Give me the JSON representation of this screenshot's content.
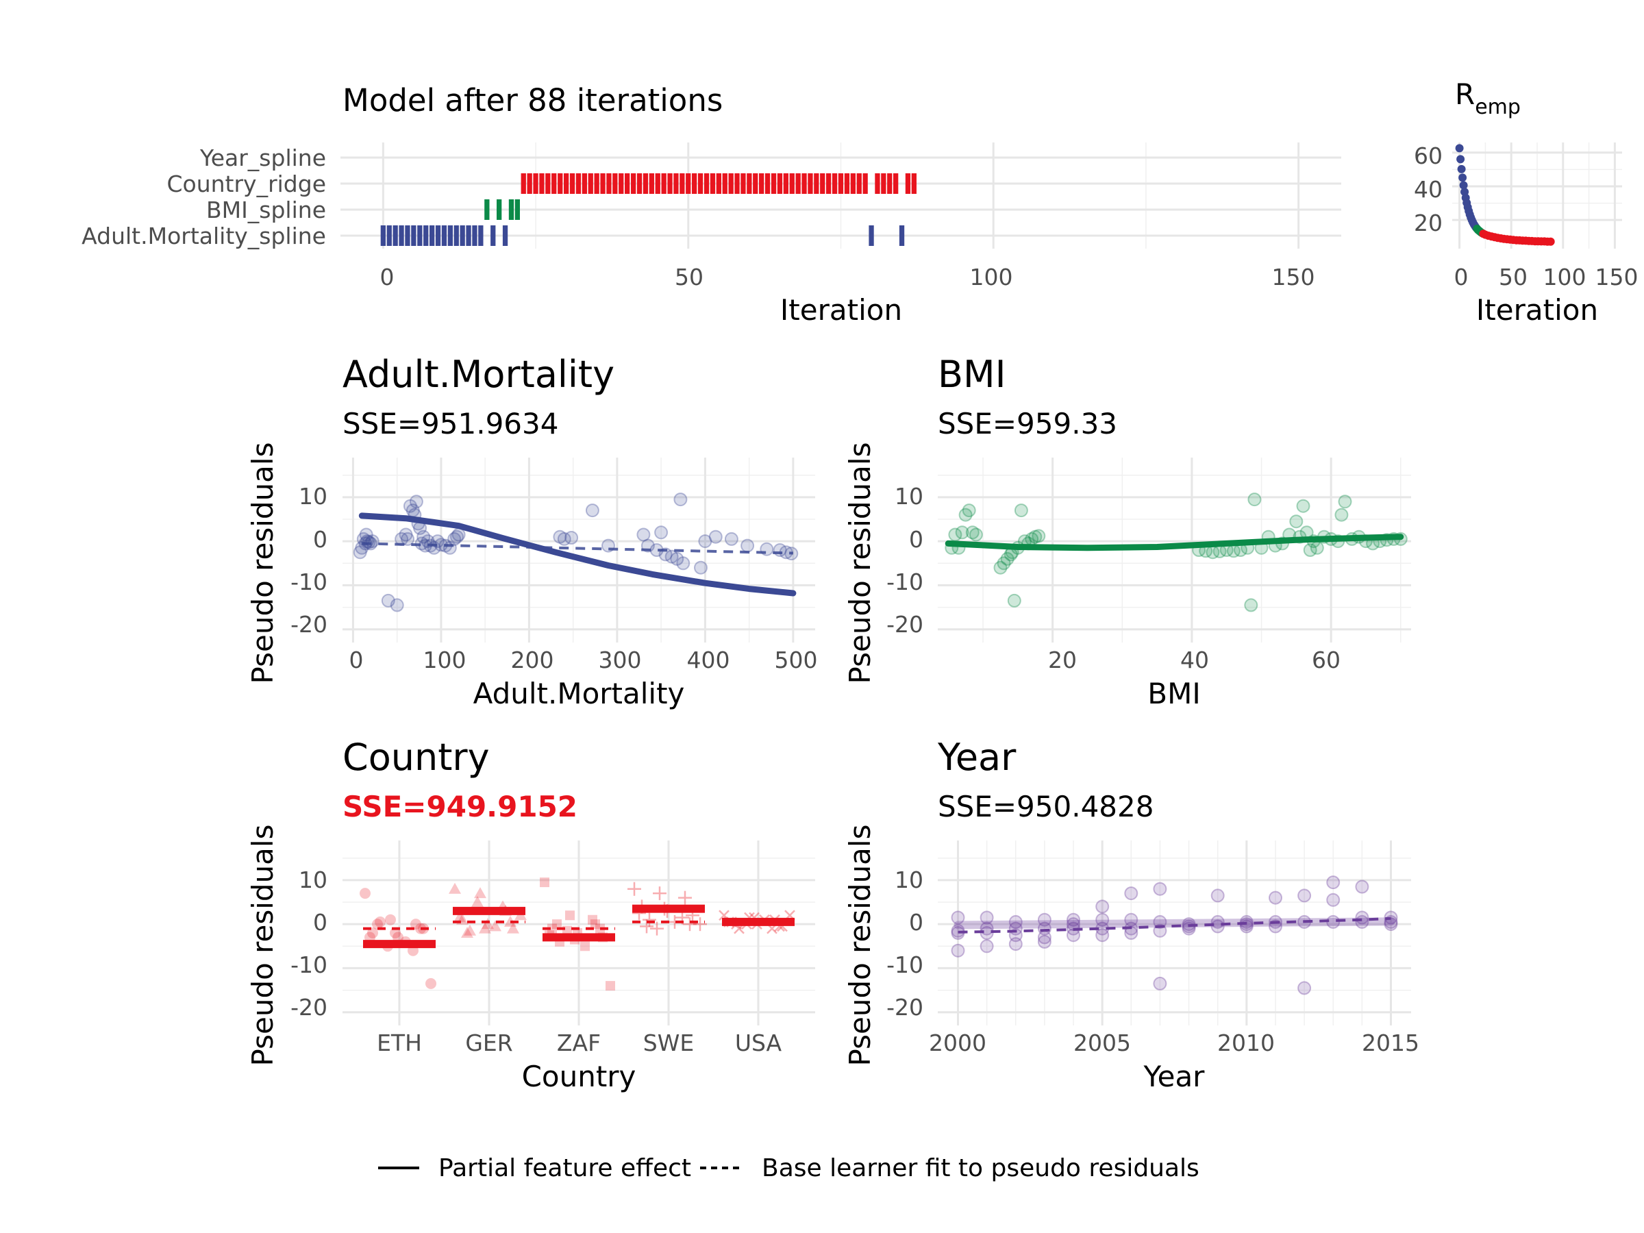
{
  "colors": {
    "Adult.Mortality": "#3b4994",
    "BMI": "#0b8a48",
    "Country": "#e8141e",
    "Year": "#6a3d9a",
    "highlight": "#e8141e",
    "grid": "#e6e6e6"
  },
  "top": {
    "title": "Model after 88 iterations",
    "xlabel": "Iteration",
    "xticks": [
      "0",
      "50",
      "100",
      "150"
    ],
    "features": [
      "Year_spline",
      "Country_ridge",
      "BMI_spline",
      "Adult.Mortality_spline"
    ],
    "risk_title": "R",
    "risk_sub": "emp",
    "risk_xlabel": "Iteration",
    "risk_yticks": [
      "20",
      "40",
      "60"
    ],
    "risk_xticks": [
      "0",
      "50",
      "100",
      "150"
    ]
  },
  "legend": {
    "solid": "Partial feature effect",
    "dashed": "Base learner fit to pseudo residuals"
  },
  "panels": {
    "am": {
      "title": "Adult.Mortality",
      "sse": "SSE=951.9634",
      "xlabel": "Adult.Mortality",
      "ylabel": "Pseudo residuals"
    },
    "bmi": {
      "title": "BMI",
      "sse": "SSE=959.33",
      "xlabel": "BMI",
      "ylabel": "Pseudo residuals"
    },
    "country": {
      "title": "Country",
      "sse": "SSE=949.9152",
      "xlabel": "Country",
      "ylabel": "Pseudo residuals"
    },
    "year": {
      "title": "Year",
      "sse": "SSE=950.4828",
      "xlabel": "Year",
      "ylabel": "Pseudo residuals"
    }
  },
  "chart_data": [
    {
      "type": "tile",
      "id": "selection",
      "title": "Model after 88 iterations",
      "xlabel": "Iteration",
      "xlim": [
        -7,
        157
      ],
      "categories": [
        "Year_spline",
        "Country_ridge",
        "BMI_spline",
        "Adult.Mortality_spline"
      ],
      "series": [
        {
          "name": "Adult.Mortality_spline",
          "iterations": [
            0,
            1,
            2,
            3,
            4,
            5,
            6,
            7,
            8,
            9,
            10,
            11,
            12,
            13,
            14,
            15,
            16,
            18,
            20,
            80,
            85
          ]
        },
        {
          "name": "BMI_spline",
          "iterations": [
            17,
            19,
            21,
            22
          ]
        },
        {
          "name": "Country_ridge",
          "iterations": [
            23,
            24,
            25,
            26,
            27,
            28,
            29,
            30,
            31,
            32,
            33,
            34,
            35,
            36,
            37,
            38,
            39,
            40,
            41,
            42,
            43,
            44,
            45,
            46,
            47,
            48,
            49,
            50,
            51,
            52,
            53,
            54,
            55,
            56,
            57,
            58,
            59,
            60,
            61,
            62,
            63,
            64,
            65,
            66,
            67,
            68,
            69,
            70,
            71,
            72,
            73,
            74,
            75,
            76,
            77,
            78,
            79,
            81,
            82,
            83,
            84,
            86,
            87
          ]
        },
        {
          "name": "Year_spline",
          "iterations": []
        }
      ],
      "ticks": [
        0,
        50,
        100,
        150
      ]
    },
    {
      "type": "scatter",
      "id": "risk",
      "title": "Remp",
      "xlabel": "Iteration",
      "xlim": [
        -7,
        157
      ],
      "ylim": [
        3,
        66
      ],
      "yticks": [
        20,
        40,
        60
      ],
      "xticks": [
        0,
        50,
        100,
        150
      ],
      "x": [
        0,
        1,
        2,
        3,
        4,
        5,
        6,
        7,
        8,
        9,
        10,
        11,
        12,
        13,
        14,
        15,
        16,
        17,
        18,
        19,
        20,
        21,
        22,
        23,
        25,
        28,
        31,
        34,
        37,
        40,
        43,
        46,
        49,
        52,
        55,
        58,
        61,
        64,
        67,
        70,
        73,
        76,
        79,
        82,
        85,
        88
      ],
      "y": [
        62.6,
        56.1,
        50.2,
        45.1,
        40.6,
        36.7,
        33.2,
        30.2,
        27.6,
        25.3,
        23.3,
        21.5,
        20.0,
        18.6,
        17.4,
        16.4,
        15.5,
        14.8,
        14.1,
        13.6,
        13.1,
        12.6,
        12.2,
        11.8,
        11.3,
        10.7,
        10.2,
        9.8,
        9.4,
        9.1,
        8.8,
        8.6,
        8.4,
        8.2,
        8.0,
        7.9,
        7.8,
        7.7,
        7.6,
        7.5,
        7.4,
        7.4,
        7.3,
        7.3,
        7.2,
        7.2
      ],
      "segments": [
        {
          "feature": "Adult.Mortality",
          "iterations": [
            0,
            17
          ]
        },
        {
          "feature": "BMI",
          "iterations": [
            17,
            23
          ]
        },
        {
          "feature": "Country",
          "iterations": [
            23,
            88
          ]
        }
      ]
    },
    {
      "type": "scatter",
      "id": "am",
      "xlabel": "Adult.Mortality",
      "ylabel": "Pseudo residuals",
      "xlim": [
        -12,
        525
      ],
      "ylim": [
        -23,
        19
      ],
      "xticks": [
        0,
        100,
        200,
        300,
        400,
        500
      ],
      "yticks": [
        -20,
        -10,
        0,
        10
      ],
      "points": [
        [
          8,
          -2.5
        ],
        [
          10,
          -1.5
        ],
        [
          12,
          0.5
        ],
        [
          14,
          -0.5
        ],
        [
          15,
          1.5
        ],
        [
          16,
          0
        ],
        [
          18,
          -0.2
        ],
        [
          20,
          -0.5
        ],
        [
          22,
          0
        ],
        [
          40,
          -13.5
        ],
        [
          50,
          -14.5
        ],
        [
          55,
          0.5
        ],
        [
          60,
          1.5
        ],
        [
          62,
          0.5
        ],
        [
          65,
          8
        ],
        [
          68,
          7
        ],
        [
          70,
          6
        ],
        [
          72,
          9
        ],
        [
          74,
          4
        ],
        [
          76,
          3
        ],
        [
          78,
          -0.5
        ],
        [
          80,
          1
        ],
        [
          82,
          -1
        ],
        [
          85,
          0
        ],
        [
          88,
          -1
        ],
        [
          92,
          -1.5
        ],
        [
          96,
          0
        ],
        [
          100,
          -0.8
        ],
        [
          105,
          -1
        ],
        [
          110,
          -1.5
        ],
        [
          115,
          0.5
        ],
        [
          118,
          1
        ],
        [
          120,
          1.5
        ],
        [
          235,
          1
        ],
        [
          240,
          0.5
        ],
        [
          248,
          0.8
        ],
        [
          272,
          7
        ],
        [
          290,
          -1
        ],
        [
          330,
          1.5
        ],
        [
          335,
          -1
        ],
        [
          345,
          -2
        ],
        [
          350,
          2
        ],
        [
          355,
          -3
        ],
        [
          362,
          -3.5
        ],
        [
          368,
          -4
        ],
        [
          372,
          9.5
        ],
        [
          375,
          -5
        ],
        [
          395,
          -6
        ],
        [
          400,
          0
        ],
        [
          412,
          1
        ],
        [
          430,
          0.5
        ],
        [
          448,
          -1
        ],
        [
          470,
          -1.8
        ],
        [
          485,
          -2
        ],
        [
          492,
          -2.5
        ],
        [
          498,
          -2.8
        ]
      ],
      "effect": {
        "x": [
          10,
          60,
          120,
          170,
          230,
          290,
          340,
          400,
          450,
          500
        ],
        "y": [
          5.8,
          5.2,
          3.5,
          0.7,
          -2.5,
          -5.5,
          -7.5,
          -9.5,
          -10.8,
          -11.8
        ]
      },
      "fit": {
        "x": [
          10,
          500
        ],
        "y": [
          -0.5,
          -2.7
        ]
      }
    },
    {
      "type": "scatter",
      "id": "bmi",
      "xlabel": "BMI",
      "ylabel": "Pseudo residuals",
      "xlim": [
        3.5,
        71.5
      ],
      "ylim": [
        -23,
        19
      ],
      "xticks": [
        20,
        40,
        60
      ],
      "yticks": [
        -20,
        -10,
        0,
        10
      ],
      "points": [
        [
          5.5,
          -1.5
        ],
        [
          6,
          1.5
        ],
        [
          6.5,
          -1.5
        ],
        [
          7,
          2
        ],
        [
          7.5,
          6
        ],
        [
          8,
          7
        ],
        [
          8.5,
          2
        ],
        [
          9,
          1.5
        ],
        [
          12.5,
          -6
        ],
        [
          13,
          -5
        ],
        [
          13.5,
          -4
        ],
        [
          14,
          -3
        ],
        [
          14.2,
          -2.5
        ],
        [
          14.5,
          -13.5
        ],
        [
          15,
          -1.5
        ],
        [
          15.5,
          7
        ],
        [
          16,
          0
        ],
        [
          16.5,
          -0.5
        ],
        [
          17,
          0.5
        ],
        [
          17.5,
          1
        ],
        [
          18,
          1.2
        ],
        [
          41,
          -2
        ],
        [
          42,
          -2.2
        ],
        [
          43,
          -2.5
        ],
        [
          44,
          -2.3
        ],
        [
          45,
          -2
        ],
        [
          46,
          -2.2
        ],
        [
          47,
          -2
        ],
        [
          48,
          -1.5
        ],
        [
          48.5,
          -14.5
        ],
        [
          49,
          9.5
        ],
        [
          50,
          -1.5
        ],
        [
          51,
          1
        ],
        [
          52,
          -1
        ],
        [
          53,
          -0.5
        ],
        [
          54,
          1.5
        ],
        [
          55,
          4.5
        ],
        [
          55.5,
          1
        ],
        [
          56,
          8
        ],
        [
          56.5,
          2
        ],
        [
          57,
          -2
        ],
        [
          57.5,
          0
        ],
        [
          58,
          -1.5
        ],
        [
          59,
          1
        ],
        [
          60,
          0.5
        ],
        [
          61,
          0
        ],
        [
          61.5,
          6
        ],
        [
          62,
          9
        ],
        [
          63,
          0.5
        ],
        [
          64,
          1
        ],
        [
          65,
          0
        ],
        [
          66,
          -0.5
        ],
        [
          67,
          0
        ],
        [
          68,
          0.3
        ],
        [
          69,
          0.5
        ],
        [
          70,
          0.5
        ]
      ],
      "effect": {
        "x": [
          5,
          15,
          25,
          35,
          45,
          55,
          65,
          70
        ],
        "y": [
          -0.5,
          -1.3,
          -1.5,
          -1.3,
          -0.5,
          0.3,
          0.8,
          1.0
        ]
      }
    },
    {
      "type": "scatter",
      "id": "country",
      "xlabel": "Country",
      "ylabel": "Pseudo residuals",
      "categories": [
        "ETH",
        "GER",
        "ZAF",
        "SWE",
        "USA"
      ],
      "ylim": [
        -23,
        19
      ],
      "yticks": [
        -20,
        -10,
        0,
        10
      ],
      "effect": [
        -4.5,
        3,
        -3,
        3.5,
        0.5
      ],
      "fit": [
        -1,
        0.5,
        -1,
        0.5,
        0.2
      ],
      "points": [
        {
          "category": "ETH",
          "shape": "circle",
          "values": [
            7,
            1,
            0,
            -2,
            -3,
            -1,
            0.5,
            -4,
            -13.5,
            -5,
            -6,
            -3,
            -2,
            -1,
            0
          ]
        },
        {
          "category": "GER",
          "shape": "triangle",
          "values": [
            8,
            7,
            3,
            1,
            0,
            -1,
            -1.5,
            -0.5,
            2,
            5,
            4,
            1.5,
            -1,
            0.5,
            -2
          ]
        },
        {
          "category": "ZAF",
          "shape": "square",
          "values": [
            9.5,
            2,
            0,
            -1,
            -2,
            -3,
            -4,
            -5,
            -14,
            -1.5,
            1,
            -2.5,
            -3.5,
            -1,
            0
          ]
        },
        {
          "category": "SWE",
          "shape": "plus",
          "values": [
            8,
            7,
            6,
            4,
            3,
            2,
            1,
            0.5,
            0,
            -1,
            1.5,
            2.5,
            3.5,
            0,
            -0.5
          ]
        },
        {
          "category": "USA",
          "shape": "cross",
          "values": [
            2,
            1.5,
            1,
            0.5,
            0,
            -0.5,
            -1,
            1,
            2,
            0,
            -1,
            0.5,
            1.5,
            -0.5,
            0
          ]
        }
      ]
    },
    {
      "type": "scatter",
      "id": "year",
      "xlabel": "Year",
      "ylabel": "Pseudo residuals",
      "xlim": [
        1999.3,
        2015.7
      ],
      "ylim": [
        -23,
        19
      ],
      "xticks": [
        2000,
        2005,
        2010,
        2015
      ],
      "yticks": [
        -20,
        -10,
        0,
        10
      ],
      "points": [
        [
          2000,
          1.5
        ],
        [
          2000,
          -1.5
        ],
        [
          2000,
          -6
        ],
        [
          2000,
          -2
        ],
        [
          2001,
          1.5
        ],
        [
          2001,
          -1
        ],
        [
          2001,
          -5
        ],
        [
          2001,
          -2
        ],
        [
          2002,
          0.5
        ],
        [
          2002,
          -1
        ],
        [
          2002,
          -4.5
        ],
        [
          2002,
          -2.5
        ],
        [
          2003,
          1
        ],
        [
          2003,
          -1
        ],
        [
          2003,
          -4
        ],
        [
          2003,
          -3
        ],
        [
          2004,
          1
        ],
        [
          2004,
          -1
        ],
        [
          2004,
          0
        ],
        [
          2004,
          -2.5
        ],
        [
          2005,
          4
        ],
        [
          2005,
          1
        ],
        [
          2005,
          -1
        ],
        [
          2005,
          -2.5
        ],
        [
          2006,
          7
        ],
        [
          2006,
          1
        ],
        [
          2006,
          -1
        ],
        [
          2006,
          -2
        ],
        [
          2007,
          8
        ],
        [
          2007,
          0.5
        ],
        [
          2007,
          -13.5
        ],
        [
          2007,
          -1.5
        ],
        [
          2008,
          0
        ],
        [
          2008,
          -0.5
        ],
        [
          2008,
          -1
        ],
        [
          2009,
          6.5
        ],
        [
          2009,
          0.5
        ],
        [
          2009,
          -0.5
        ],
        [
          2010,
          0
        ],
        [
          2010,
          0.5
        ],
        [
          2010,
          -0.5
        ],
        [
          2011,
          6
        ],
        [
          2011,
          0.5
        ],
        [
          2011,
          -0.5
        ],
        [
          2012,
          6.5
        ],
        [
          2012,
          0.5
        ],
        [
          2012,
          -14.5
        ],
        [
          2013,
          9.5
        ],
        [
          2013,
          5.5
        ],
        [
          2013,
          0.5
        ],
        [
          2014,
          8.5
        ],
        [
          2014,
          1.5
        ],
        [
          2014,
          0.5
        ],
        [
          2015,
          1.5
        ],
        [
          2015,
          0.5
        ],
        [
          2015,
          0
        ]
      ],
      "effect": {
        "x": [
          2000,
          2015
        ],
        "y": [
          -0.2,
          0.6
        ]
      },
      "fit": {
        "x": [
          2000,
          2002,
          2004,
          2006,
          2008,
          2010,
          2012,
          2014,
          2015
        ],
        "y": [
          -1.8,
          -1.6,
          -1.2,
          -0.8,
          -0.3,
          0.2,
          0.6,
          1.0,
          1.3
        ]
      }
    }
  ]
}
